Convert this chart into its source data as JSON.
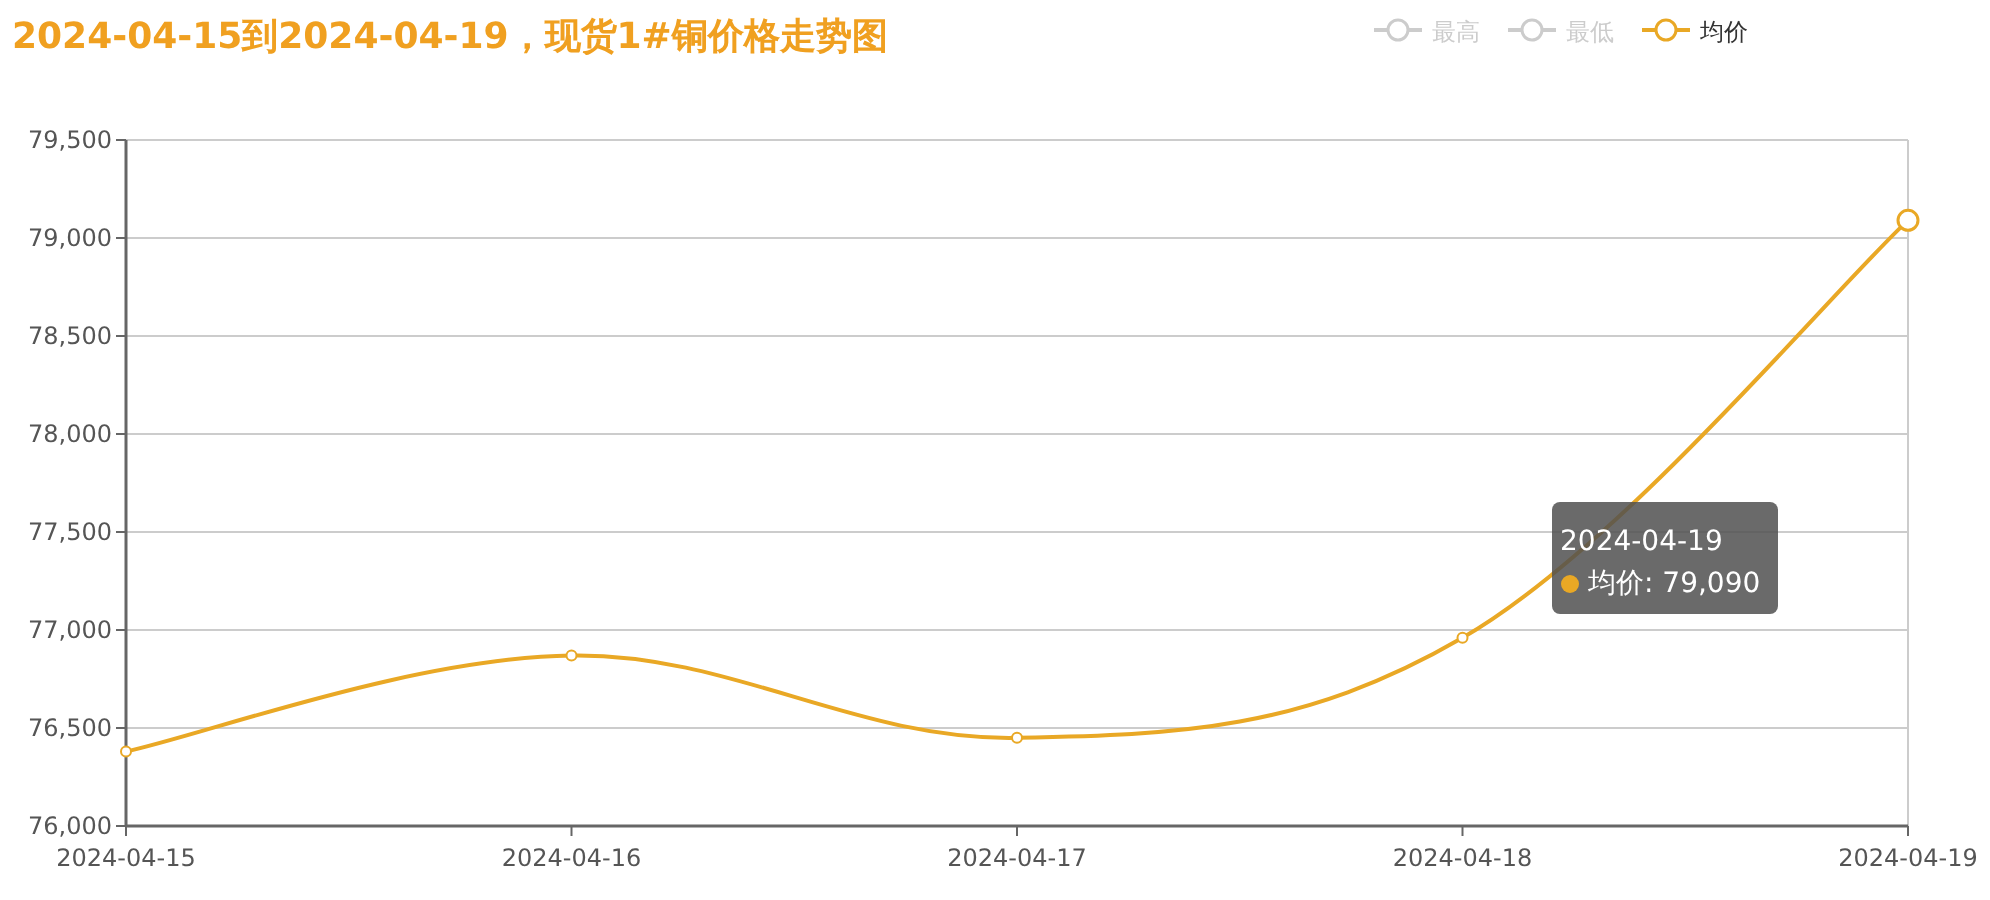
{
  "chart_data": {
    "type": "line",
    "title": "2024-04-15到2024-04-19，现货1#铜价格走势图",
    "categories": [
      "2024-04-15",
      "2024-04-16",
      "2024-04-17",
      "2024-04-18",
      "2024-04-19"
    ],
    "series": [
      {
        "name": "最高",
        "color": "#cccccc",
        "values": [
          null,
          null,
          null,
          null,
          null
        ]
      },
      {
        "name": "最低",
        "color": "#cccccc",
        "values": [
          null,
          null,
          null,
          null,
          null
        ]
      },
      {
        "name": "均价",
        "color": "#e9a825",
        "values": [
          76380,
          76870,
          76450,
          76960,
          79090
        ]
      }
    ],
    "ylim": [
      76000,
      79500
    ],
    "yticks": [
      {
        "value": 76000,
        "label": "76,000"
      },
      {
        "value": 76500,
        "label": "76,500"
      },
      {
        "value": 77000,
        "label": "77,000"
      },
      {
        "value": 77500,
        "label": "77,500"
      },
      {
        "value": 78000,
        "label": "78,000"
      },
      {
        "value": 78500,
        "label": "78,500"
      },
      {
        "value": 79000,
        "label": "79,000"
      },
      {
        "value": 79500,
        "label": "79,500"
      }
    ],
    "annotations": [
      "2024-04-19\n均价: 79,090"
    ],
    "grid": "y",
    "legend": "top right",
    "marker": "circle",
    "line_style": "solid"
  }
}
